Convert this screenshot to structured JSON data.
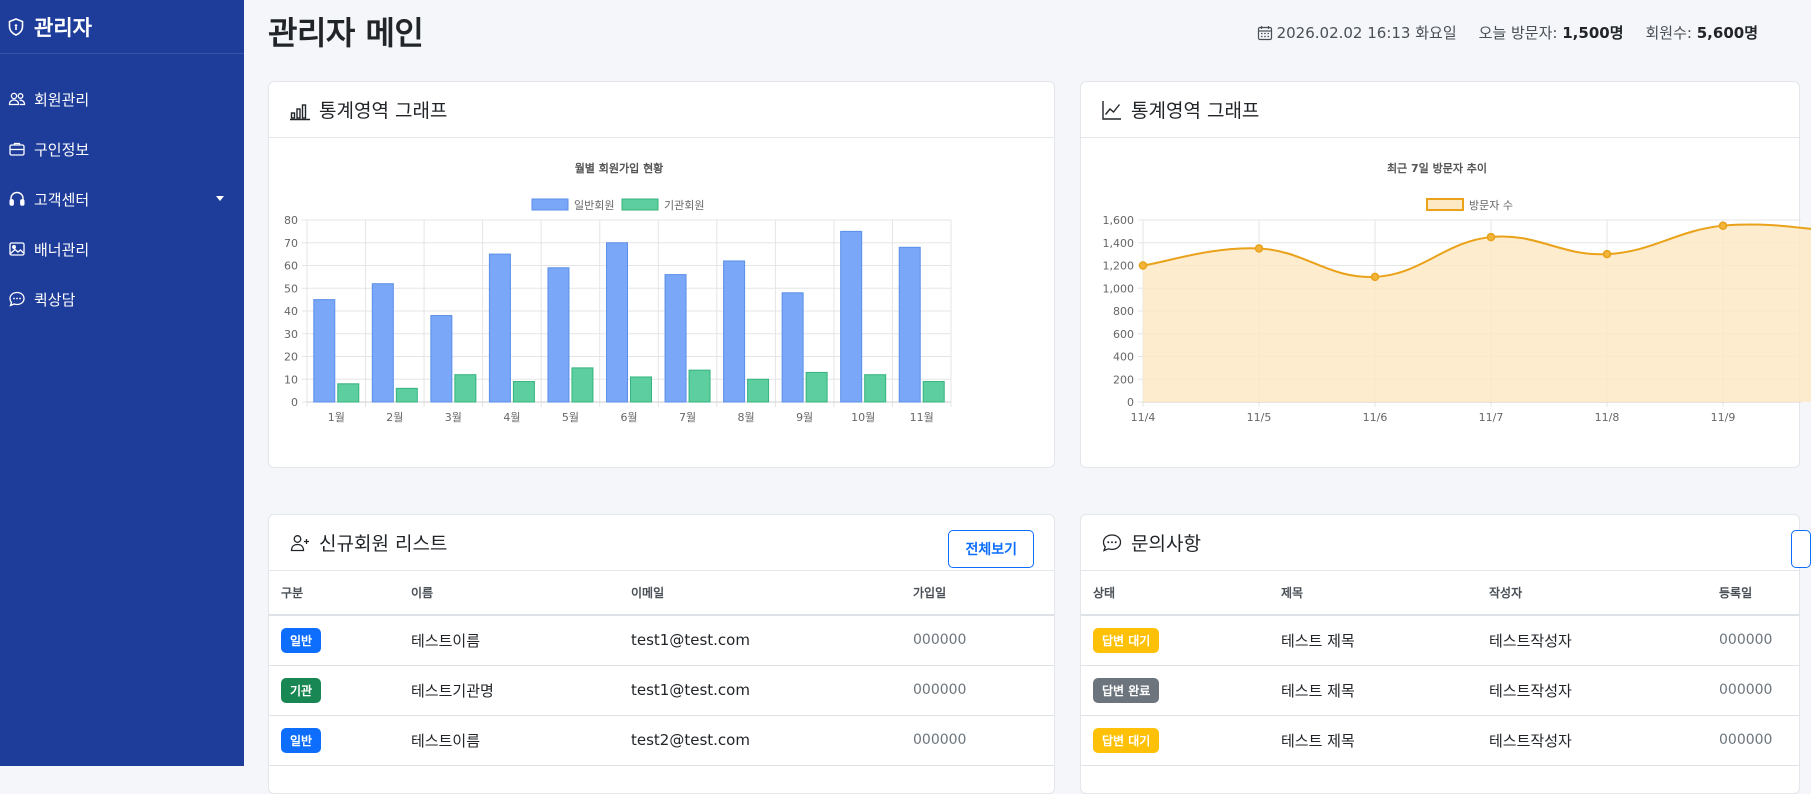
{
  "sidebar": {
    "brand": "관리자",
    "items": [
      {
        "label": "회원관리",
        "icon": "people-icon"
      },
      {
        "label": "구인정보",
        "icon": "briefcase-icon"
      },
      {
        "label": "고객센터",
        "icon": "headset-icon",
        "has_submenu": true
      },
      {
        "label": "배너관리",
        "icon": "image-icon"
      },
      {
        "label": "퀵상담",
        "icon": "chat-dots-icon"
      }
    ]
  },
  "header": {
    "title": "관리자 메인",
    "datetime": "2026.02.02 16:13 화요일",
    "visitors_label": "오늘 방문자:",
    "visitors_value": "1,500명",
    "members_label": "회원수:",
    "members_value": "5,600명"
  },
  "cards": {
    "chart1_title": "통계영역 그래프",
    "chart2_title": "통계영역 그래프",
    "members_title": "신규회원 리스트",
    "members_button": "전체보기",
    "inquiries_title": "문의사항"
  },
  "members_table": {
    "headers": [
      "구분",
      "이름",
      "이메일",
      "가입일"
    ],
    "rows": [
      {
        "type": "일반",
        "name": "테스트이름",
        "email": "test1@test.com",
        "date": "000000"
      },
      {
        "type": "기관",
        "name": "테스트기관명",
        "email": "test1@test.com",
        "date": "000000"
      },
      {
        "type": "일반",
        "name": "테스트이름",
        "email": "test2@test.com",
        "date": "000000"
      }
    ]
  },
  "inquiries_table": {
    "headers": [
      "상태",
      "제목",
      "작성자",
      "등록일"
    ],
    "rows": [
      {
        "status": "답변 대기",
        "title": "테스트 제목",
        "author": "테스트작성자",
        "date": "000000"
      },
      {
        "status": "답변 완료",
        "title": "테스트 제목",
        "author": "테스트작성자",
        "date": "000000"
      },
      {
        "status": "답변 대기",
        "title": "테스트 제목",
        "author": "테스트작성자",
        "date": "000000"
      }
    ]
  },
  "colors": {
    "sidebar_bg": "#1e3c9a",
    "accent": "#0d6efd",
    "bar_general": "#7aa7f7",
    "bar_institution": "#5cce9f",
    "line": "#e9a21a",
    "line_fill": "#fde9c4"
  },
  "chart_data": [
    {
      "type": "bar",
      "title": "월별 회원가입 현황",
      "categories": [
        "1월",
        "2월",
        "3월",
        "4월",
        "5월",
        "6월",
        "7월",
        "8월",
        "9월",
        "10월",
        "11월"
      ],
      "series": [
        {
          "name": "일반회원",
          "values": [
            45,
            52,
            38,
            65,
            59,
            70,
            56,
            62,
            48,
            75,
            68
          ]
        },
        {
          "name": "기관회원",
          "values": [
            8,
            6,
            12,
            9,
            15,
            11,
            14,
            10,
            13,
            12,
            9
          ]
        }
      ],
      "ylim": [
        0,
        80
      ],
      "yticks": [
        0,
        10,
        20,
        30,
        40,
        50,
        60,
        70,
        80
      ],
      "legend": "top",
      "grid": true
    },
    {
      "type": "line",
      "title": "최근 7일 방문자 추이",
      "x": [
        "11/4",
        "11/5",
        "11/6",
        "11/7",
        "11/8",
        "11/9"
      ],
      "series": [
        {
          "name": "방문자 수",
          "values": [
            1200,
            1350,
            1100,
            1450,
            1300,
            1550
          ]
        }
      ],
      "ylim": [
        0,
        1600
      ],
      "yticks": [
        "0",
        "200",
        "400",
        "600",
        "800",
        "1,000",
        "1,200",
        "1,400",
        "1,600"
      ],
      "fill": true,
      "legend": "top",
      "grid": true
    }
  ]
}
